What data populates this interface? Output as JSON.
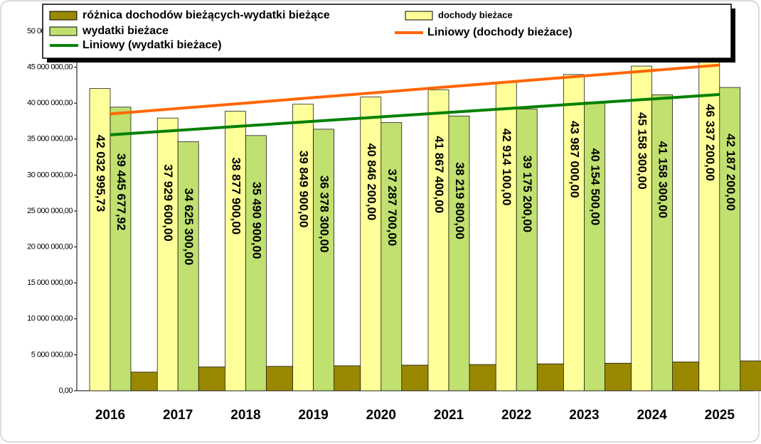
{
  "chart_data": {
    "type": "bar",
    "categories": [
      "2016",
      "2017",
      "2018",
      "2019",
      "2020",
      "2021",
      "2022",
      "2023",
      "2024",
      "2025"
    ],
    "series": [
      {
        "name": "różnica dochodów bieżących-wydatki bieżące",
        "color": "#998800",
        "values": [
          2587317.81,
          3304300,
          3387000,
          3471600,
          3558500,
          3647600,
          3738900,
          3832500,
          4000000,
          4150000
        ]
      },
      {
        "name": "dochody bieżace",
        "color": "#ffff99",
        "values": [
          42032995.73,
          37929600,
          38877900,
          39849900,
          40846200,
          41867400,
          42914100,
          43987000,
          45158300,
          46337200
        ],
        "value_labels": [
          "42 032 995,73",
          "37 929 600,00",
          "38 877 900,00",
          "39 849 900,00",
          "40 846 200,00",
          "41 867 400,00",
          "42 914 100,00",
          "43 987 000,00",
          "45 158 300,00",
          "46 337 200,00"
        ]
      },
      {
        "name": "wydatki bieżace",
        "color": "#c0e070",
        "values": [
          39445677.92,
          34625300,
          35490900,
          36378300,
          37287700,
          38219800,
          39175200,
          40154500,
          41158300,
          42187200
        ],
        "value_labels": [
          "39 445 677,92",
          "34 625 300,00",
          "35 490 900,00",
          "36 378 300,00",
          "37 287 700,00",
          "38 219 800,00",
          "39 175 200,00",
          "40 154 500,00",
          "41 158 300,00",
          "42 187 200,00"
        ]
      },
      {
        "name": "Liniowy (dochody bieżace)",
        "type": "line",
        "color": "#ff6600",
        "values": [
          38500000,
          39260000,
          40010000,
          40770000,
          41520000,
          42280000,
          43030000,
          43790000,
          44540000,
          45300000
        ]
      },
      {
        "name": "Liniowy (wydatki bieżace)",
        "type": "line",
        "color": "#008000",
        "values": [
          35600000,
          36220000,
          36840000,
          37470000,
          38090000,
          38710000,
          39330000,
          39960000,
          40580000,
          41200000
        ]
      }
    ],
    "ylim": [
      0,
      50000000
    ],
    "yticks": [
      {
        "value": 0,
        "label": "0,00"
      },
      {
        "value": 5000000,
        "label": "5 000 000,00"
      },
      {
        "value": 10000000,
        "label": "10 000 000,00"
      },
      {
        "value": 15000000,
        "label": "15 000 000,00"
      },
      {
        "value": 20000000,
        "label": "20 000 000,00"
      },
      {
        "value": 25000000,
        "label": "25 000 000,00"
      },
      {
        "value": 30000000,
        "label": "30 000 000,00"
      },
      {
        "value": 35000000,
        "label": "35 000 000,00"
      },
      {
        "value": 40000000,
        "label": "40 000 000,00"
      },
      {
        "value": 45000000,
        "label": "45 000 000,00"
      },
      {
        "value": 50000000,
        "label": "50 000 000,00"
      }
    ]
  }
}
